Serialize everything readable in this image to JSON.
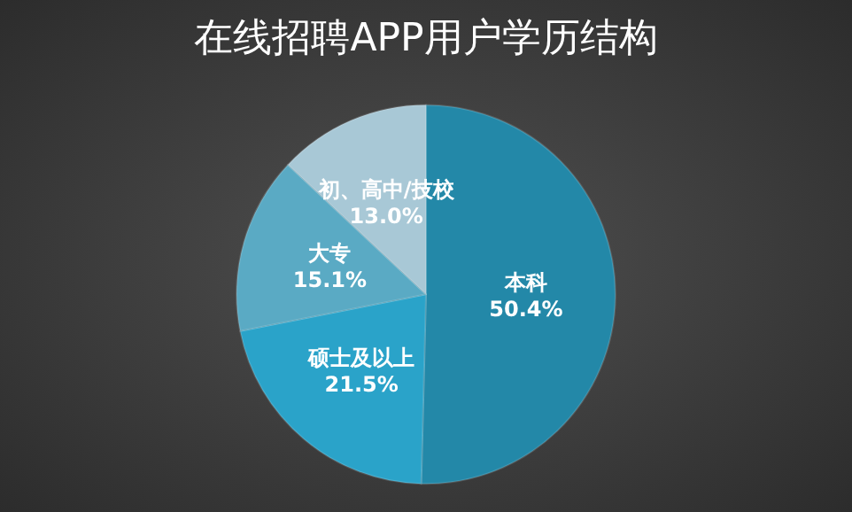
{
  "chart_data": {
    "type": "pie",
    "title": "在线招聘APP用户学历结构",
    "categories": [
      "本科",
      "硕士及以上",
      "大专",
      "初、高中/技校"
    ],
    "values": [
      50.4,
      21.5,
      15.1,
      13.0
    ],
    "value_labels": [
      "50.4%",
      "21.5%",
      "15.1%",
      "13.0%"
    ],
    "colors": [
      "#2388a8",
      "#2aa3c9",
      "#5aaac4",
      "#a8c8d6"
    ],
    "legend": false
  }
}
